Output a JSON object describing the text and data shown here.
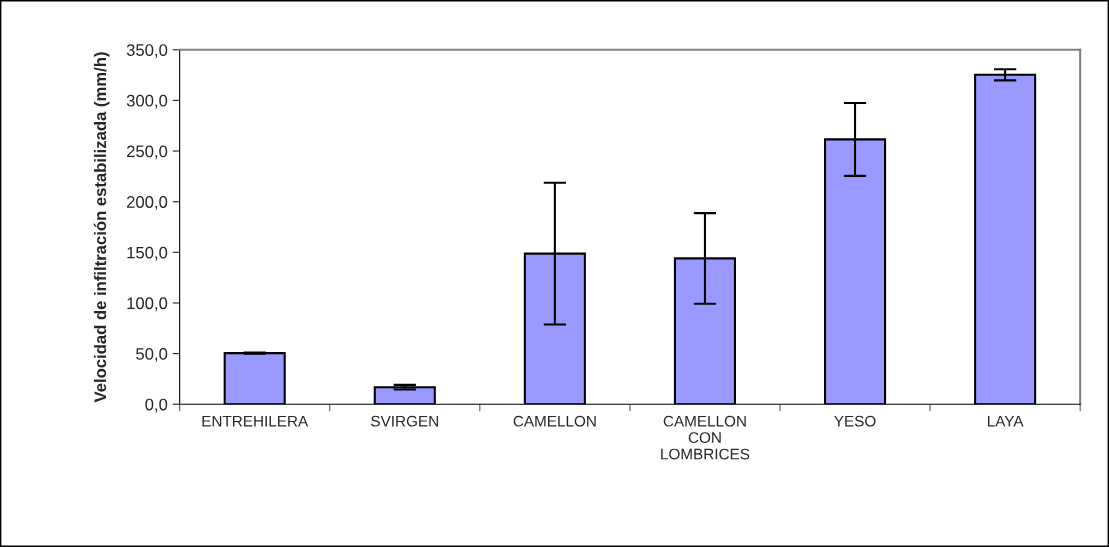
{
  "chart_data": {
    "type": "bar",
    "ylabel": "Velocidad de infiltración estabilizada (mm/h)",
    "categories": [
      "ENTREHILERA",
      "SVIRGEN",
      "CAMELLON",
      "CAMELLON\nCON\nLOMBRICES",
      "YESO",
      "LAYA"
    ],
    "values": [
      50.5,
      16.8,
      148.7,
      144,
      261.5,
      325.3
    ],
    "errors": [
      0.5,
      2.3,
      70,
      44.7,
      36,
      5.5
    ],
    "color": "#9999ff",
    "ylim": [
      0,
      350
    ],
    "yticks": [
      {
        "value": 0,
        "label": "0,0"
      },
      {
        "value": 50,
        "label": "50,0"
      },
      {
        "value": 100,
        "label": "100,0"
      },
      {
        "value": 150,
        "label": "150,0"
      },
      {
        "value": 200,
        "label": "200,0"
      },
      {
        "value": 250,
        "label": "250,0"
      },
      {
        "value": 300,
        "label": "300,0"
      },
      {
        "value": 350,
        "label": "350,0"
      }
    ],
    "grid": false,
    "legend": false
  }
}
